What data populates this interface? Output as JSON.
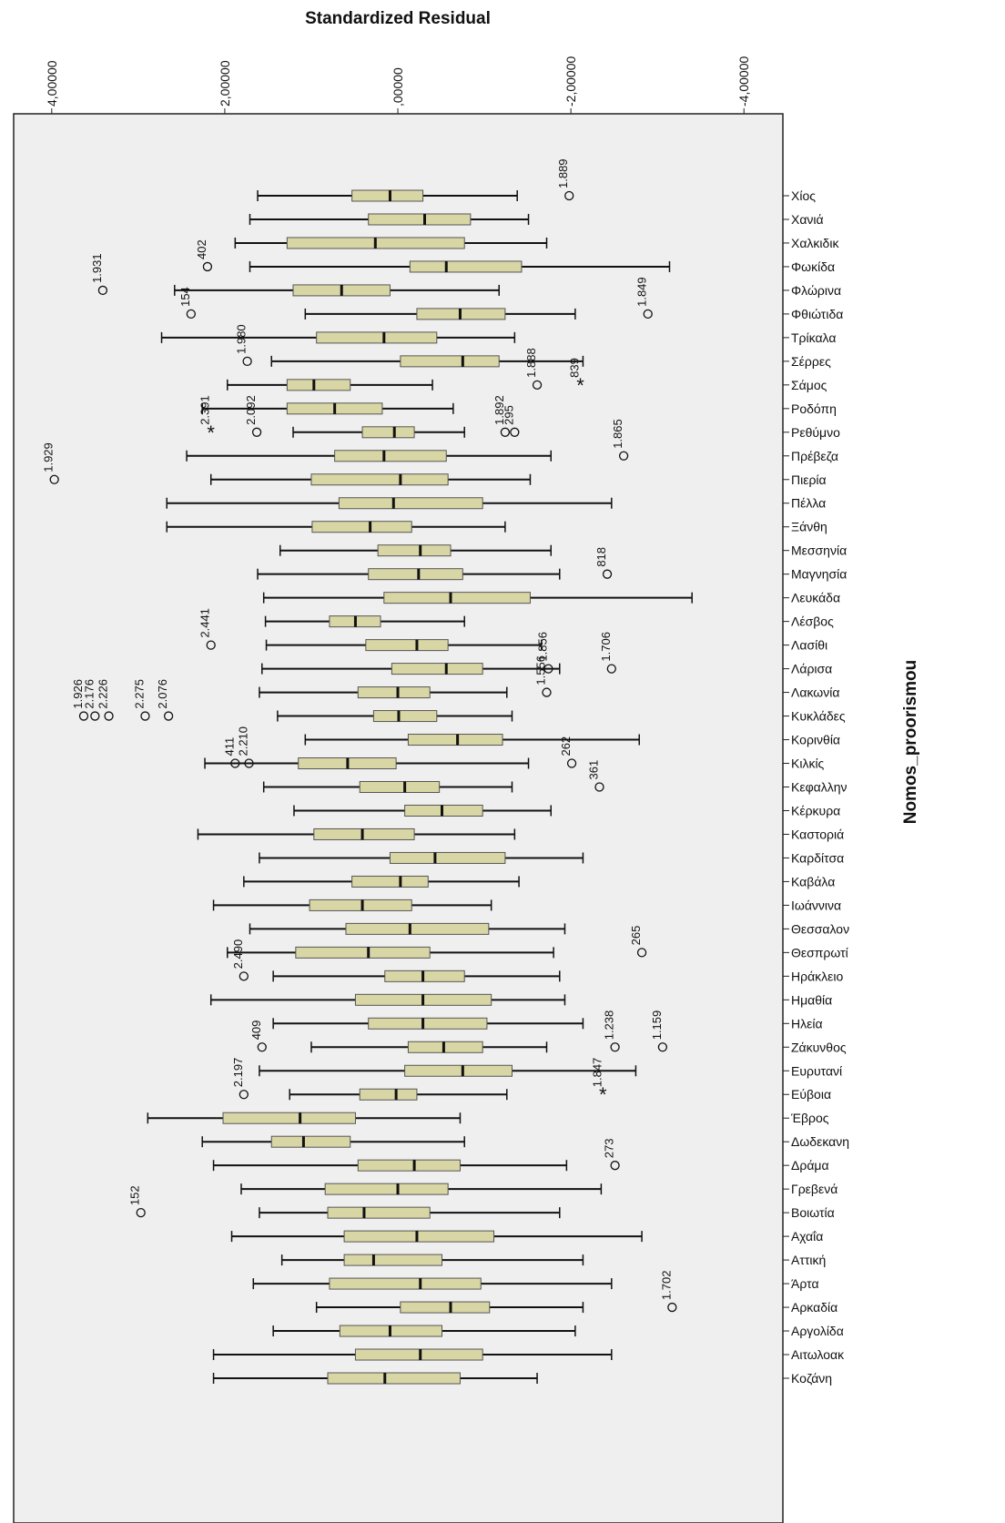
{
  "chart_data": {
    "type": "boxplot",
    "orientation": "horizontal",
    "x_label": "Standardized Residual",
    "y_label": "Nomos_proorismou",
    "xlim": [
      4.44,
      -4.45
    ],
    "xticks": [
      {
        "value": 4,
        "label": "4,00000"
      },
      {
        "value": 2,
        "label": "2,00000"
      },
      {
        "value": 0,
        "label": ",00000"
      },
      {
        "value": -2,
        "label": "-2,00000"
      },
      {
        "value": -4,
        "label": "-4,00000"
      }
    ],
    "box_color": "#d9d6a6",
    "background": "#efefef",
    "categories": [
      "Χίος",
      "Χανιά",
      "Χαλκιδικ",
      "Φωκίδα",
      "Φλώρινα",
      "Φθιώτιδα",
      "Τρίκαλα",
      "Σέρρες",
      "Σάμος",
      "Ροδόπη",
      "Ρεθύμνο",
      "Πρέβεζα",
      "Πιερία",
      "Πέλλα",
      "Ξάνθη",
      "Μεσσηνία",
      "Μαγνησία",
      "Λευκάδα",
      "Λέσβος",
      "Λασίθι",
      "Λάρισα",
      "Λακωνία",
      "Κυκλάδες",
      "Κορινθία",
      "Κιλκίς",
      "Κεφαλλην",
      "Κέρκυρα",
      "Καστοριά",
      "Καρδίτσα",
      "Καβάλα",
      "Ιωάννινα",
      "Θεσσαλον",
      "Θεσπρωτί",
      "Ηράκλειο",
      "Ημαθία",
      "Ηλεία",
      "Ζάκυνθος",
      "Ευρυτανί",
      "Εύβοια",
      "Έβρος",
      "Δωδεκανη",
      "Δράμα",
      "Γρεβενά",
      "Βοιωτία",
      "Αχαΐα",
      "Αττική",
      "Άρτα",
      "Αρκαδία",
      "Αργολίδα",
      "Αιτωλοακ",
      "Κοζάνη"
    ],
    "high": [
      1.62,
      1.71,
      1.88,
      1.71,
      2.58,
      1.07,
      2.73,
      1.46,
      1.97,
      2.26,
      1.21,
      2.44,
      2.16,
      2.67,
      2.67,
      1.36,
      1.62,
      1.55,
      1.53,
      1.52,
      1.57,
      1.6,
      1.39,
      1.07,
      2.23,
      1.55,
      1.2,
      2.31,
      1.6,
      1.78,
      2.13,
      1.71,
      1.97,
      1.44,
      2.16,
      1.44,
      1.0,
      1.6,
      1.25,
      2.89,
      2.26,
      2.13,
      1.81,
      1.6,
      1.92,
      1.34,
      1.67,
      0.94,
      1.44,
      2.13,
      2.13
    ],
    "q3": [
      0.53,
      0.34,
      1.28,
      -0.14,
      1.21,
      -0.22,
      0.94,
      -0.03,
      1.28,
      1.28,
      0.41,
      0.73,
      1.0,
      0.68,
      0.99,
      0.23,
      0.34,
      0.16,
      0.79,
      0.37,
      0.07,
      0.46,
      0.28,
      -0.12,
      1.15,
      0.44,
      -0.08,
      0.97,
      0.09,
      0.53,
      1.02,
      0.6,
      1.18,
      0.15,
      0.49,
      0.34,
      -0.12,
      -0.08,
      0.44,
      2.02,
      1.46,
      0.46,
      0.84,
      0.81,
      0.62,
      0.62,
      0.79,
      -0.03,
      0.67,
      0.49,
      0.81
    ],
    "median": [
      0.09,
      -0.31,
      0.26,
      -0.56,
      0.65,
      -0.72,
      0.16,
      -0.75,
      0.97,
      0.73,
      0.04,
      0.16,
      -0.03,
      0.05,
      0.32,
      -0.26,
      -0.24,
      -0.61,
      0.49,
      -0.22,
      -0.56,
      0,
      -0.01,
      -0.69,
      0.58,
      -0.08,
      -0.51,
      0.41,
      -0.43,
      -0.03,
      0.41,
      -0.14,
      0.34,
      -0.29,
      -0.29,
      -0.29,
      -0.53,
      -0.75,
      0.02,
      1.13,
      1.09,
      -0.19,
      0,
      0.39,
      -0.22,
      0.28,
      -0.26,
      -0.61,
      0.09,
      -0.26,
      0.15
    ],
    "q1": [
      -0.29,
      -0.84,
      -0.77,
      -1.43,
      0.09,
      -1.24,
      -0.45,
      -1.17,
      0.55,
      0.18,
      -0.19,
      -0.56,
      -0.58,
      -0.98,
      -0.16,
      -0.61,
      -0.75,
      -1.53,
      0.2,
      -0.58,
      -0.98,
      -0.37,
      -0.45,
      -1.21,
      0.02,
      -0.48,
      -0.98,
      -0.19,
      -1.24,
      -0.35,
      -0.16,
      -1.05,
      -0.37,
      -0.77,
      -1.08,
      -1.03,
      -0.98,
      -1.32,
      -0.22,
      0.49,
      0.55,
      -0.72,
      -0.58,
      -0.37,
      -1.11,
      -0.51,
      -0.96,
      -1.06,
      -0.51,
      -0.98,
      -0.72
    ],
    "low": [
      -1.38,
      -1.51,
      -1.72,
      -3.14,
      -1.17,
      -2.05,
      -1.35,
      -2.14,
      -0.4,
      -0.64,
      -0.77,
      -1.77,
      -1.53,
      -2.47,
      -1.24,
      -1.77,
      -1.87,
      -3.4,
      -0.77,
      -1.66,
      -1.87,
      -1.26,
      -1.32,
      -2.79,
      -1.51,
      -1.32,
      -1.77,
      -1.35,
      -2.14,
      -1.4,
      -1.08,
      -1.93,
      -1.8,
      -1.87,
      -1.93,
      -2.14,
      -1.72,
      -2.75,
      -1.26,
      -0.72,
      -0.77,
      -1.95,
      -2.35,
      -1.87,
      -2.82,
      -2.14,
      -2.47,
      -2.14,
      -2.05,
      -2.47,
      -1.61
    ],
    "outliers": [
      {
        "category": "Χίος",
        "value": -1.98,
        "label": "1.889",
        "marker": "circle"
      },
      {
        "category": "Φωκίδα",
        "value": 2.2,
        "label": "402",
        "marker": "circle"
      },
      {
        "category": "Φλώρινα",
        "value": 3.41,
        "label": "1.931",
        "marker": "circle"
      },
      {
        "category": "Φθιώτιδα",
        "value": 2.39,
        "label": "154",
        "marker": "circle"
      },
      {
        "category": "Φθιώτιδα",
        "value": -2.89,
        "label": "1.849",
        "marker": "circle"
      },
      {
        "category": "Σέρρες",
        "value": 1.74,
        "label": "1.980",
        "marker": "circle"
      },
      {
        "category": "Σάμος",
        "value": -1.61,
        "label": "1.888",
        "marker": "circle"
      },
      {
        "category": "Σάμος",
        "value": -2.11,
        "label": "839",
        "marker": "star"
      },
      {
        "category": "Ρεθύμνο",
        "value": 2.16,
        "label": "2.391",
        "marker": "star"
      },
      {
        "category": "Ρεθύμνο",
        "value": 1.63,
        "label": "2.092",
        "marker": "circle"
      },
      {
        "category": "Ρεθύμνο",
        "value": -1.35,
        "label": "295",
        "marker": "circle"
      },
      {
        "category": "Ρεθύμνο",
        "value": -1.24,
        "label": "1.892",
        "marker": "circle"
      },
      {
        "category": "Πρέβεζα",
        "value": -2.61,
        "label": "1.865",
        "marker": "circle"
      },
      {
        "category": "Πιερία",
        "value": 3.97,
        "label": "1.929",
        "marker": "circle"
      },
      {
        "category": "Μαγνησία",
        "value": -2.42,
        "label": "818",
        "marker": "circle"
      },
      {
        "category": "Λασίθι",
        "value": 2.16,
        "label": "2.441",
        "marker": "circle"
      },
      {
        "category": "Λάρισα",
        "value": -1.74,
        "label": "1.856",
        "marker": "circle"
      },
      {
        "category": "Λάρισα",
        "value": -2.47,
        "label": "1.706",
        "marker": "circle"
      },
      {
        "category": "Λακωνία",
        "value": -1.72,
        "label": "1.556",
        "marker": "circle"
      },
      {
        "category": "Κυκλάδες",
        "value": 3.63,
        "label": "1.926",
        "marker": "circle"
      },
      {
        "category": "Κυκλάδες",
        "value": 3.5,
        "label": "2.176",
        "marker": "circle"
      },
      {
        "category": "Κυκλάδες",
        "value": 3.34,
        "label": "2.226",
        "marker": "circle"
      },
      {
        "category": "Κυκλάδες",
        "value": 2.92,
        "label": "2.275",
        "marker": "circle"
      },
      {
        "category": "Κυκλάδες",
        "value": 2.65,
        "label": "2.076",
        "marker": "circle"
      },
      {
        "category": "Κιλκίς",
        "value": 1.88,
        "label": "411",
        "marker": "circle"
      },
      {
        "category": "Κιλκίς",
        "value": 1.72,
        "label": "2.210",
        "marker": "circle"
      },
      {
        "category": "Κιλκίς",
        "value": -2.01,
        "label": "262",
        "marker": "circle"
      },
      {
        "category": "Κεφαλλην",
        "value": -2.33,
        "label": "361",
        "marker": "circle"
      },
      {
        "category": "Θεσπρωτί",
        "value": -2.82,
        "label": "265",
        "marker": "circle"
      },
      {
        "category": "Ηράκλειο",
        "value": 1.78,
        "label": "2.490",
        "marker": "circle"
      },
      {
        "category": "Ζάκυνθος",
        "value": 1.57,
        "label": "409",
        "marker": "circle"
      },
      {
        "category": "Ζάκυνθος",
        "value": -2.51,
        "label": "1.238",
        "marker": "circle"
      },
      {
        "category": "Ζάκυνθος",
        "value": -3.06,
        "label": "1.159",
        "marker": "circle"
      },
      {
        "category": "Εύβοια",
        "value": 1.78,
        "label": "2.197",
        "marker": "circle"
      },
      {
        "category": "Εύβοια",
        "value": -2.37,
        "label": "1.847",
        "marker": "star"
      },
      {
        "category": "Δράμα",
        "value": -2.51,
        "label": "273",
        "marker": "circle"
      },
      {
        "category": "Βοιωτία",
        "value": 2.97,
        "label": "152",
        "marker": "circle"
      },
      {
        "category": "Αρκαδία",
        "value": -3.17,
        "label": "1.702",
        "marker": "circle"
      }
    ]
  }
}
